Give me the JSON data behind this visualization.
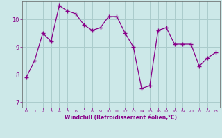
{
  "title": "",
  "xlabel": "Windchill (Refroidissement éolien,°C)",
  "ylabel": "",
  "xlim": [
    -0.5,
    23.5
  ],
  "ylim": [
    6.8,
    10.65
  ],
  "yticks": [
    7,
    8,
    9,
    10
  ],
  "xticks": [
    0,
    1,
    2,
    3,
    4,
    5,
    6,
    7,
    8,
    9,
    10,
    11,
    12,
    13,
    14,
    15,
    16,
    17,
    18,
    19,
    20,
    21,
    22,
    23
  ],
  "bg_color": "#cce8e8",
  "line_color": "#880088",
  "grid_color": "#aacccc",
  "hours": [
    0,
    1,
    2,
    3,
    4,
    5,
    6,
    7,
    8,
    9,
    10,
    11,
    12,
    13,
    14,
    15,
    16,
    17,
    18,
    19,
    20,
    21,
    22,
    23
  ],
  "windchill": [
    7.9,
    8.5,
    9.5,
    9.2,
    10.5,
    10.3,
    10.2,
    9.8,
    9.6,
    9.7,
    10.1,
    10.1,
    9.5,
    9.0,
    7.5,
    7.6,
    9.6,
    9.7,
    9.1,
    9.1,
    9.1,
    8.3,
    8.6,
    8.8
  ]
}
